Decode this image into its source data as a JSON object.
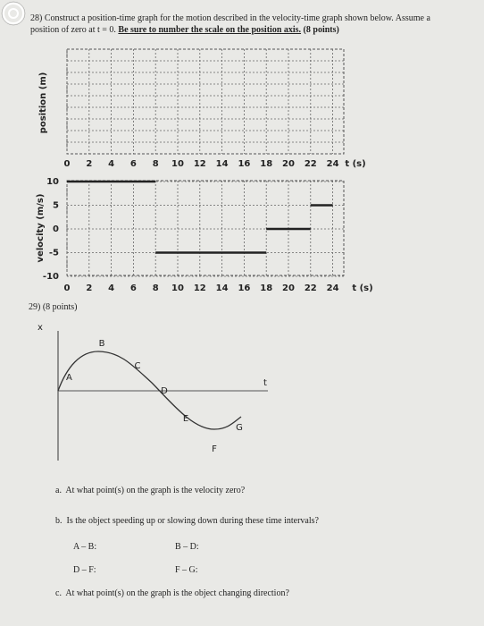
{
  "question_28": {
    "number": "28)",
    "text": "Construct a position-time graph for the motion described in the velocity-time graph shown below. Assume a position of zero at t = 0.",
    "emphasis": "Be sure to number the scale on the position axis.",
    "points": "(8 points)"
  },
  "position_graph": {
    "y_label": "position (m)",
    "x_label": "t (s)",
    "xticks": [
      0,
      2,
      4,
      6,
      8,
      10,
      12,
      14,
      16,
      18,
      20,
      22,
      24
    ]
  },
  "velocity_graph": {
    "y_label": "velocity (m/s)",
    "x_label": "t (s)",
    "xticks": [
      0,
      2,
      4,
      6,
      8,
      10,
      12,
      14,
      16,
      18,
      20,
      22,
      24
    ],
    "yticks": [
      10,
      5,
      0,
      -5,
      -10
    ],
    "segments": [
      {
        "t": [
          0,
          8
        ],
        "v": 10
      },
      {
        "t": [
          8,
          18
        ],
        "v": -5
      },
      {
        "t": [
          18,
          22
        ],
        "v": 0
      },
      {
        "t": [
          22,
          24
        ],
        "v": 5
      }
    ]
  },
  "question_29": {
    "header": "29) (8 points)",
    "x_axis": "x",
    "t_axis": "t",
    "points": [
      "A",
      "B",
      "C",
      "D",
      "E",
      "F",
      "G"
    ],
    "parts": [
      {
        "label": "a.",
        "text": "At what point(s) on the graph is the velocity zero?"
      },
      {
        "label": "b.",
        "text": "Is the object speeding up or slowing down during these time intervals?",
        "intervals": [
          "A – B:",
          "B – D:",
          "D – F:",
          "F – G:"
        ]
      },
      {
        "label": "c.",
        "text": "At what point(s) on the graph is the object changing direction?"
      }
    ]
  }
}
